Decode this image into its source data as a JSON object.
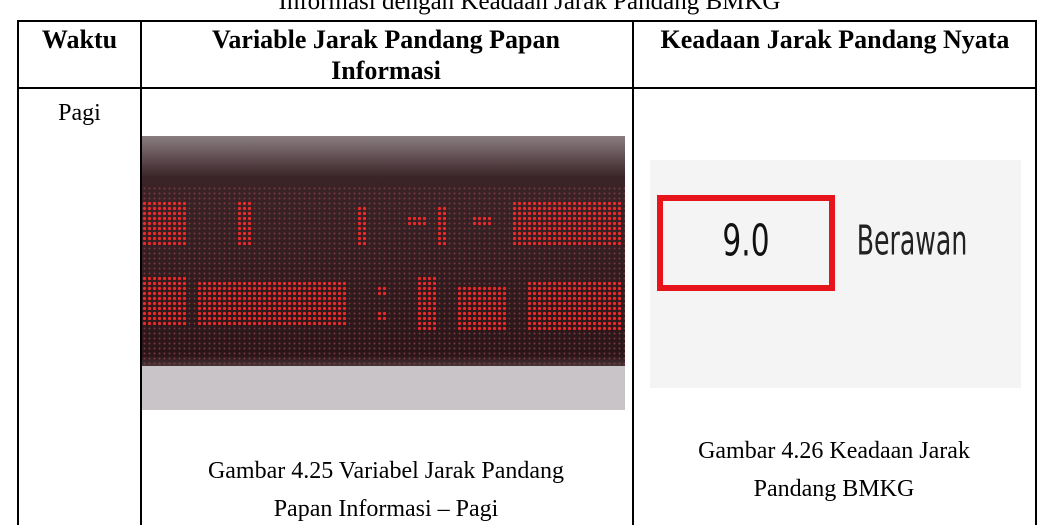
{
  "caption_top": "Informasi dengan Keadaan Jarak Pandang BMKG",
  "table": {
    "headers": [
      "Waktu",
      "Variable Jarak Pandang Papan Informasi",
      "Keadaan Jarak Pandang Nyata"
    ],
    "rows": [
      {
        "time": "Pagi",
        "left_caption": "Gambar 4.25 Variabel Jarak Pandang Papan Informasi – Pagi",
        "right_image": {
          "value": "9.0",
          "status": "Berawan"
        },
        "right_caption": "Gambar 4.26 Keadaan Jarak Pandang BMKG"
      }
    ]
  }
}
